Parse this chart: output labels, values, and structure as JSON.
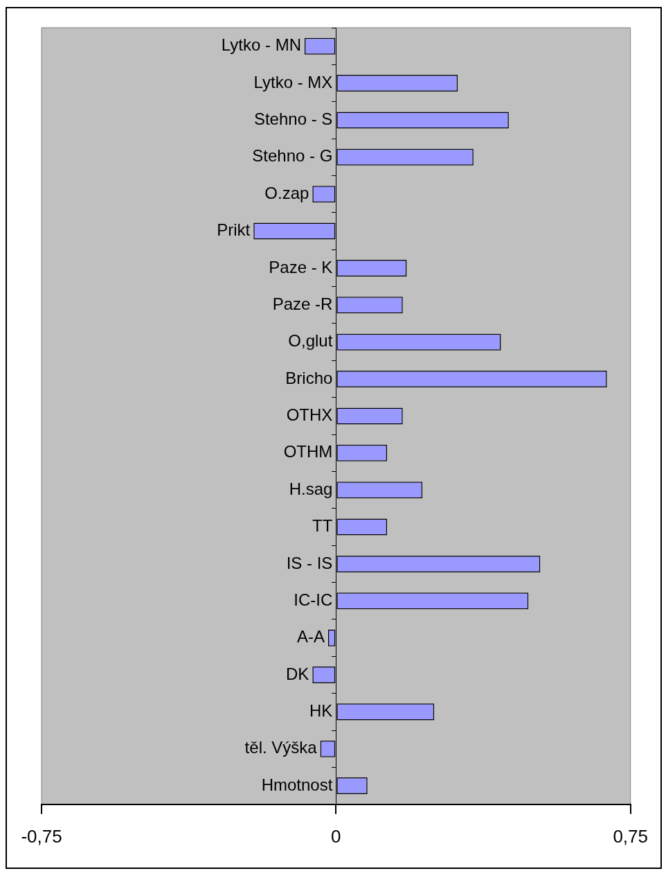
{
  "chart_data": {
    "type": "bar",
    "orientation": "horizontal",
    "categories": [
      "Lytko - MN",
      "Lytko - MX",
      "Stehno - S",
      "Stehno - G",
      "O.zap",
      "Prikt",
      "Paze - K",
      "Paze -R",
      "O,glut",
      "Bricho",
      "OTHX",
      "OTHM",
      "H.sag",
      "TT",
      "IS - IS",
      "IC-IC",
      "A-A",
      "DK",
      "HK",
      "těl. Výška",
      "Hmotnost"
    ],
    "values": [
      -0.08,
      0.31,
      0.44,
      0.35,
      -0.06,
      -0.21,
      0.18,
      0.17,
      0.42,
      0.69,
      0.17,
      0.13,
      0.22,
      0.13,
      0.52,
      0.49,
      -0.02,
      -0.06,
      0.25,
      -0.04,
      0.08
    ],
    "color": "#9999ff",
    "xlim": [
      -0.75,
      0.75
    ],
    "xticks": [
      {
        "value": -0.75,
        "label": "-0,75"
      },
      0,
      {
        "value": 0.75,
        "label": "0,75"
      }
    ],
    "grid": false,
    "legend": false
  }
}
